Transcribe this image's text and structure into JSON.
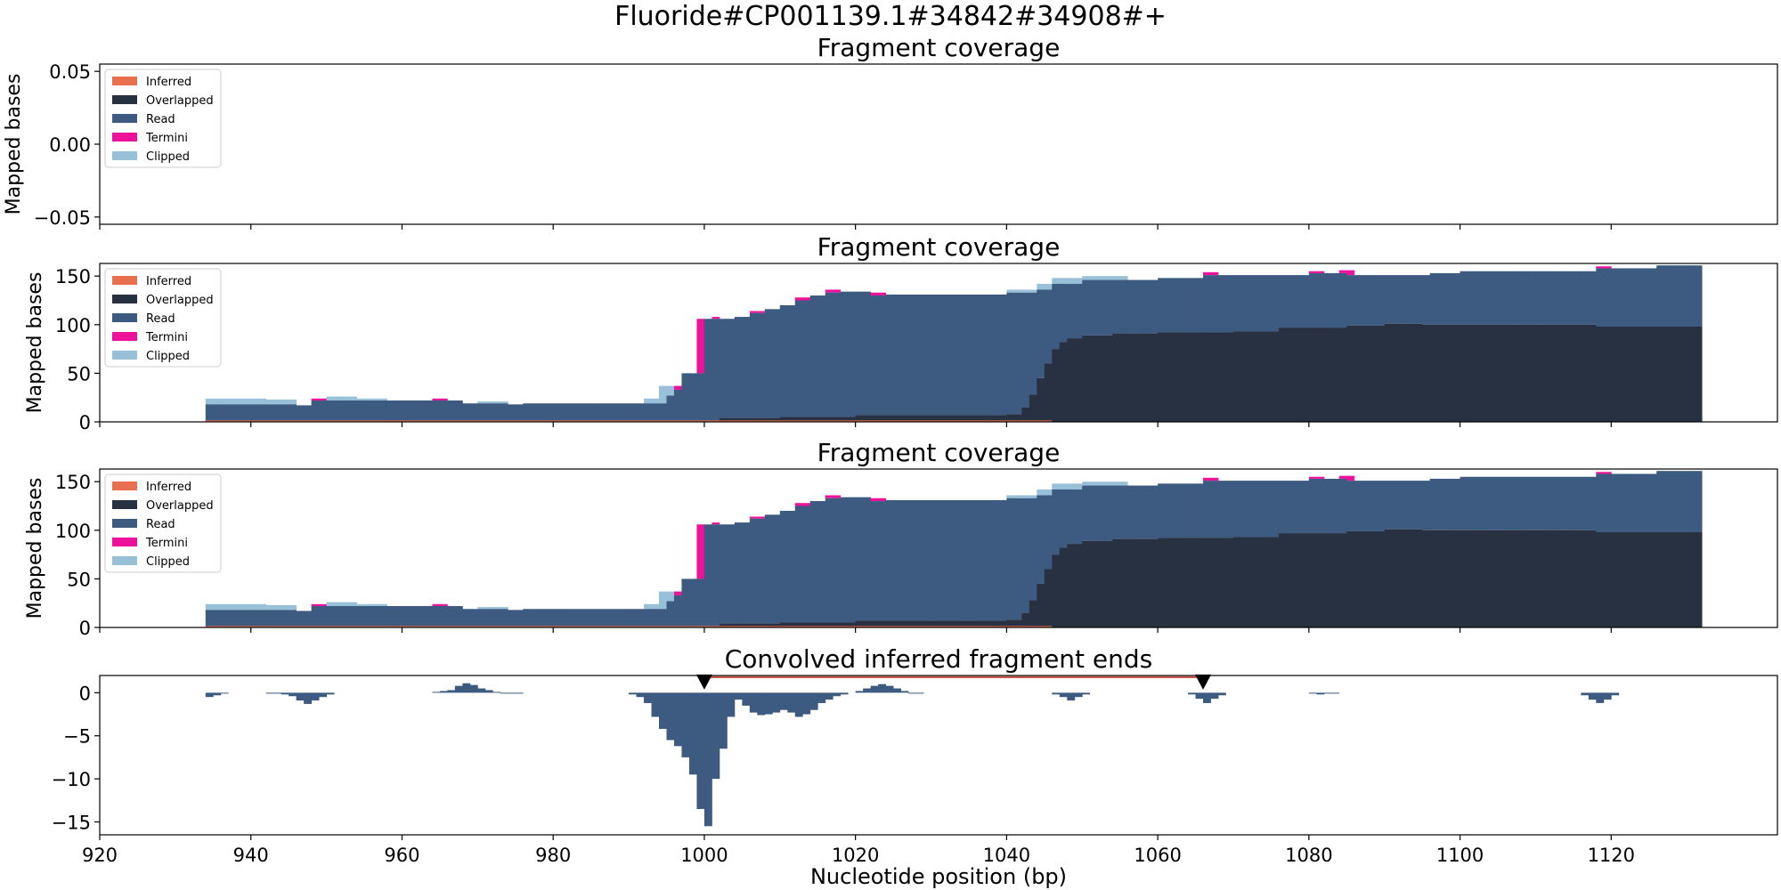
{
  "figure": {
    "suptitle": "Fluoride#CP001139.1#34842#34908#+",
    "xlabel": "Nucleotide position (bp)"
  },
  "legend_entries": [
    {
      "label": "Inferred",
      "color": "#e8704f"
    },
    {
      "label": "Overlapped",
      "color": "#283142"
    },
    {
      "label": "Read",
      "color": "#3d5a80"
    },
    {
      "label": "Termini",
      "color": "#ee119a"
    },
    {
      "label": "Clipped",
      "color": "#98c1d9"
    }
  ],
  "chart_data": [
    {
      "type": "area",
      "title": "Fragment coverage",
      "ylabel": "Mapped bases",
      "xlim": [
        920,
        1142
      ],
      "ylim": [
        -0.055,
        0.055
      ],
      "yticks": [
        -0.05,
        0.0,
        0.05
      ],
      "ytick_labels": [
        "−0.05",
        "0.00",
        "0.05"
      ],
      "legend": "top-left",
      "series": []
    },
    {
      "type": "area",
      "title": "Fragment coverage",
      "ylabel": "Mapped bases",
      "xlim": [
        920,
        1142
      ],
      "ylim": [
        0,
        163
      ],
      "yticks": [
        0,
        50,
        100,
        150
      ],
      "ytick_labels": [
        "0",
        "50",
        "100",
        "150"
      ],
      "legend": "top-left",
      "stacked": true,
      "x_start": 934,
      "bin_width": 2,
      "layers": {
        "inferred": [
          {
            "from": 934,
            "to": 1046,
            "value": 1.5
          }
        ],
        "overlapped": [
          {
            "from": 934,
            "to": 1002,
            "value": 0
          },
          {
            "from": 1002,
            "to": 1010,
            "value": 4
          },
          {
            "from": 1010,
            "to": 1020,
            "value": 5
          },
          {
            "from": 1020,
            "to": 1040,
            "value": 7
          },
          {
            "from": 1040,
            "to": 1042,
            "value": 8
          },
          {
            "from": 1042,
            "to": 1043,
            "value": 15
          },
          {
            "from": 1043,
            "to": 1044,
            "value": 28
          },
          {
            "from": 1044,
            "to": 1045,
            "value": 45
          },
          {
            "from": 1045,
            "to": 1046,
            "value": 60
          },
          {
            "from": 1046,
            "to": 1047,
            "value": 75
          },
          {
            "from": 1047,
            "to": 1048,
            "value": 82
          },
          {
            "from": 1048,
            "to": 1050,
            "value": 86
          },
          {
            "from": 1050,
            "to": 1054,
            "value": 89
          },
          {
            "from": 1054,
            "to": 1060,
            "value": 91
          },
          {
            "from": 1060,
            "to": 1070,
            "value": 92
          },
          {
            "from": 1070,
            "to": 1076,
            "value": 93
          },
          {
            "from": 1076,
            "to": 1085,
            "value": 97
          },
          {
            "from": 1085,
            "to": 1090,
            "value": 99
          },
          {
            "from": 1090,
            "to": 1095,
            "value": 101
          },
          {
            "from": 1095,
            "to": 1100,
            "value": 100
          },
          {
            "from": 1100,
            "to": 1110,
            "value": 100
          },
          {
            "from": 1110,
            "to": 1118,
            "value": 100
          },
          {
            "from": 1118,
            "to": 1132,
            "value": 98
          }
        ],
        "read_top": [
          {
            "from": 934,
            "to": 942,
            "value": 18
          },
          {
            "from": 942,
            "to": 946,
            "value": 18
          },
          {
            "from": 946,
            "to": 948,
            "value": 17
          },
          {
            "from": 948,
            "to": 964,
            "value": 22
          },
          {
            "from": 964,
            "to": 968,
            "value": 22
          },
          {
            "from": 968,
            "to": 974,
            "value": 19
          },
          {
            "from": 974,
            "to": 976,
            "value": 18
          },
          {
            "from": 976,
            "to": 993,
            "value": 19
          },
          {
            "from": 993,
            "to": 995,
            "value": 19
          },
          {
            "from": 995,
            "to": 996,
            "value": 27
          },
          {
            "from": 996,
            "to": 997,
            "value": 33
          },
          {
            "from": 997,
            "to": 999,
            "value": 50
          },
          {
            "from": 999,
            "to": 1000,
            "value": 50
          },
          {
            "from": 1000,
            "to": 1002,
            "value": 106
          },
          {
            "from": 1002,
            "to": 1004,
            "value": 106
          },
          {
            "from": 1004,
            "to": 1006,
            "value": 108
          },
          {
            "from": 1006,
            "to": 1008,
            "value": 112
          },
          {
            "from": 1008,
            "to": 1010,
            "value": 116
          },
          {
            "from": 1010,
            "to": 1012,
            "value": 120
          },
          {
            "from": 1012,
            "to": 1014,
            "value": 125
          },
          {
            "from": 1014,
            "to": 1016,
            "value": 130
          },
          {
            "from": 1016,
            "to": 1018,
            "value": 133
          },
          {
            "from": 1018,
            "to": 1020,
            "value": 134
          },
          {
            "from": 1020,
            "to": 1022,
            "value": 134
          },
          {
            "from": 1022,
            "to": 1024,
            "value": 130
          },
          {
            "from": 1024,
            "to": 1040,
            "value": 131
          },
          {
            "from": 1040,
            "to": 1044,
            "value": 133
          },
          {
            "from": 1044,
            "to": 1046,
            "value": 136
          },
          {
            "from": 1046,
            "to": 1050,
            "value": 142
          },
          {
            "from": 1050,
            "to": 1060,
            "value": 146
          },
          {
            "from": 1060,
            "to": 1066,
            "value": 148
          },
          {
            "from": 1066,
            "to": 1070,
            "value": 151
          },
          {
            "from": 1070,
            "to": 1076,
            "value": 151
          },
          {
            "from": 1076,
            "to": 1080,
            "value": 151
          },
          {
            "from": 1080,
            "to": 1085,
            "value": 153
          },
          {
            "from": 1085,
            "to": 1096,
            "value": 151
          },
          {
            "from": 1096,
            "to": 1100,
            "value": 153
          },
          {
            "from": 1100,
            "to": 1118,
            "value": 155
          },
          {
            "from": 1118,
            "to": 1126,
            "value": 158
          },
          {
            "from": 1126,
            "to": 1132,
            "value": 161
          }
        ],
        "termini_top": [
          {
            "from": 948,
            "to": 950,
            "value": 24
          },
          {
            "from": 964,
            "to": 966,
            "value": 24
          },
          {
            "from": 996,
            "to": 997,
            "value": 37
          },
          {
            "from": 997,
            "to": 998,
            "value": 50
          },
          {
            "from": 998,
            "to": 999,
            "value": 50
          },
          {
            "from": 999,
            "to": 1000,
            "value": 106
          },
          {
            "from": 1001,
            "to": 1002,
            "value": 108
          },
          {
            "from": 1006,
            "to": 1008,
            "value": 114
          },
          {
            "from": 1012,
            "to": 1014,
            "value": 128
          },
          {
            "from": 1016,
            "to": 1018,
            "value": 136
          },
          {
            "from": 1022,
            "to": 1024,
            "value": 133
          },
          {
            "from": 1066,
            "to": 1068,
            "value": 154
          },
          {
            "from": 1080,
            "to": 1082,
            "value": 155
          },
          {
            "from": 1084,
            "to": 1086,
            "value": 156
          },
          {
            "from": 1118,
            "to": 1120,
            "value": 160
          }
        ],
        "clipped_top": [
          {
            "from": 934,
            "to": 942,
            "value": 24
          },
          {
            "from": 942,
            "to": 946,
            "value": 23
          },
          {
            "from": 950,
            "to": 954,
            "value": 26
          },
          {
            "from": 954,
            "to": 958,
            "value": 24
          },
          {
            "from": 970,
            "to": 974,
            "value": 21
          },
          {
            "from": 992,
            "to": 994,
            "value": 24
          },
          {
            "from": 994,
            "to": 996,
            "value": 37
          },
          {
            "from": 1040,
            "to": 1044,
            "value": 136
          },
          {
            "from": 1044,
            "to": 1046,
            "value": 142
          },
          {
            "from": 1046,
            "to": 1050,
            "value": 148
          },
          {
            "from": 1050,
            "to": 1056,
            "value": 150
          }
        ]
      }
    },
    {
      "type": "area",
      "title": "Fragment coverage",
      "ylabel": "Mapped bases",
      "xlim": [
        920,
        1142
      ],
      "ylim": [
        0,
        163
      ],
      "yticks": [
        0,
        50,
        100,
        150
      ],
      "ytick_labels": [
        "0",
        "50",
        "100",
        "150"
      ],
      "legend": "top-left",
      "stacked": true,
      "same_as_previous": true
    },
    {
      "type": "bar",
      "title": "Convolved inferred fragment ends",
      "ylabel": "",
      "xlim": [
        920,
        1142
      ],
      "ylim": [
        -16.5,
        2.0
      ],
      "yticks": [
        0,
        -5,
        -10,
        -15
      ],
      "ytick_labels": [
        "0",
        "−5",
        "−10",
        "−15"
      ],
      "xticks": [
        920,
        940,
        960,
        980,
        1000,
        1020,
        1040,
        1060,
        1080,
        1100,
        1120
      ],
      "bin_width": 1,
      "bars": [
        {
          "x": 934,
          "y": -0.5
        },
        {
          "x": 935,
          "y": -0.3
        },
        {
          "x": 936,
          "y": -0.1
        },
        {
          "x": 942,
          "y": -0.1
        },
        {
          "x": 943,
          "y": -0.1
        },
        {
          "x": 944,
          "y": -0.2
        },
        {
          "x": 945,
          "y": -0.4
        },
        {
          "x": 946,
          "y": -0.9
        },
        {
          "x": 947,
          "y": -1.3
        },
        {
          "x": 948,
          "y": -0.9
        },
        {
          "x": 949,
          "y": -0.5
        },
        {
          "x": 950,
          "y": -0.2
        },
        {
          "x": 964,
          "y": 0.1
        },
        {
          "x": 965,
          "y": 0.2
        },
        {
          "x": 966,
          "y": 0.3
        },
        {
          "x": 967,
          "y": 0.8
        },
        {
          "x": 968,
          "y": 1.1
        },
        {
          "x": 969,
          "y": 0.9
        },
        {
          "x": 970,
          "y": 0.5
        },
        {
          "x": 971,
          "y": 0.3
        },
        {
          "x": 972,
          "y": 0.1
        },
        {
          "x": 973,
          "y": -0.1
        },
        {
          "x": 974,
          "y": -0.1
        },
        {
          "x": 975,
          "y": -0.1
        },
        {
          "x": 990,
          "y": -0.2
        },
        {
          "x": 991,
          "y": -0.5
        },
        {
          "x": 992,
          "y": -1.2
        },
        {
          "x": 993,
          "y": -2.8
        },
        {
          "x": 994,
          "y": -4.2
        },
        {
          "x": 995,
          "y": -5.5
        },
        {
          "x": 996,
          "y": -6.2
        },
        {
          "x": 997,
          "y": -7.5
        },
        {
          "x": 998,
          "y": -9.5
        },
        {
          "x": 999,
          "y": -13.5
        },
        {
          "x": 1000,
          "y": -15.5
        },
        {
          "x": 1001,
          "y": -10.0
        },
        {
          "x": 1002,
          "y": -6.5
        },
        {
          "x": 1003,
          "y": -2.8
        },
        {
          "x": 1004,
          "y": -0.8
        },
        {
          "x": 1005,
          "y": -1.5
        },
        {
          "x": 1006,
          "y": -2.3
        },
        {
          "x": 1007,
          "y": -2.6
        },
        {
          "x": 1008,
          "y": -2.5
        },
        {
          "x": 1009,
          "y": -2.3
        },
        {
          "x": 1010,
          "y": -2.0
        },
        {
          "x": 1011,
          "y": -2.3
        },
        {
          "x": 1012,
          "y": -2.8
        },
        {
          "x": 1013,
          "y": -2.5
        },
        {
          "x": 1014,
          "y": -2.0
        },
        {
          "x": 1015,
          "y": -1.2
        },
        {
          "x": 1016,
          "y": -0.8
        },
        {
          "x": 1017,
          "y": -0.4
        },
        {
          "x": 1018,
          "y": -0.2
        },
        {
          "x": 1020,
          "y": 0.2
        },
        {
          "x": 1021,
          "y": 0.5
        },
        {
          "x": 1022,
          "y": 0.8
        },
        {
          "x": 1023,
          "y": 1.0
        },
        {
          "x": 1024,
          "y": 0.8
        },
        {
          "x": 1025,
          "y": 0.5
        },
        {
          "x": 1026,
          "y": 0.2
        },
        {
          "x": 1027,
          "y": -0.1
        },
        {
          "x": 1028,
          "y": -0.1
        },
        {
          "x": 1046,
          "y": -0.2
        },
        {
          "x": 1047,
          "y": -0.5
        },
        {
          "x": 1048,
          "y": -0.9
        },
        {
          "x": 1049,
          "y": -0.5
        },
        {
          "x": 1050,
          "y": -0.2
        },
        {
          "x": 1064,
          "y": -0.2
        },
        {
          "x": 1065,
          "y": -0.7
        },
        {
          "x": 1066,
          "y": -1.2
        },
        {
          "x": 1067,
          "y": -0.7
        },
        {
          "x": 1068,
          "y": -0.3
        },
        {
          "x": 1080,
          "y": -0.1
        },
        {
          "x": 1081,
          "y": -0.2
        },
        {
          "x": 1082,
          "y": -0.1
        },
        {
          "x": 1083,
          "y": -0.1
        },
        {
          "x": 1116,
          "y": -0.3
        },
        {
          "x": 1117,
          "y": -0.8
        },
        {
          "x": 1118,
          "y": -1.2
        },
        {
          "x": 1119,
          "y": -0.8
        },
        {
          "x": 1120,
          "y": -0.3
        }
      ],
      "markers": [
        {
          "x": 1000,
          "y": 1.8
        },
        {
          "x": 1066,
          "y": 1.8
        }
      ],
      "span_line": {
        "from": 1000,
        "to": 1066,
        "y": 1.8
      }
    }
  ]
}
